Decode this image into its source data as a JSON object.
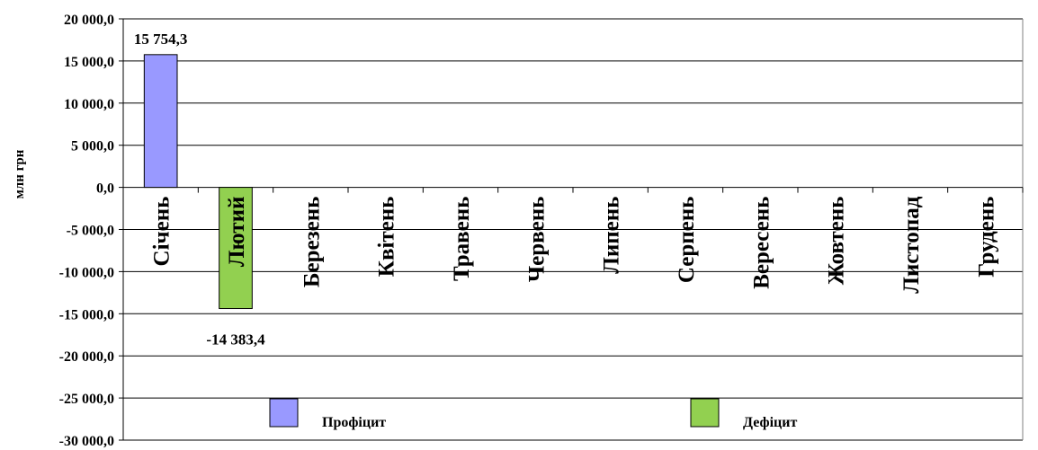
{
  "chart_data": {
    "type": "bar",
    "ylabel": "млн грн",
    "ylim": [
      -30000,
      20000
    ],
    "ytick_step": 5000,
    "ytick_labels": [
      "20 000,0",
      "15 000,0",
      "10 000,0",
      "5 000,0",
      "0,0",
      "-5 000,0",
      "-10 000,0",
      "-15 000,0",
      "-20 000,0",
      "-25 000,0",
      "-30 000,0"
    ],
    "categories": [
      "Січень",
      "Лютий",
      "Березень",
      "Квітень",
      "Травень",
      "Червень",
      "Липень",
      "Серпень",
      "Вересень",
      "Жовтень",
      "Листопад",
      "Грудень"
    ],
    "values": [
      15754.3,
      -14383.4,
      null,
      null,
      null,
      null,
      null,
      null,
      null,
      null,
      null,
      null
    ],
    "data_labels": [
      "15 754,3",
      "-14 383,4",
      "",
      "",
      "",
      "",
      "",
      "",
      "",
      "",
      "",
      ""
    ],
    "series": [
      {
        "name": "Профіцит",
        "color": "#9999FF"
      },
      {
        "name": "Дефіцит",
        "color": "#92D050"
      }
    ],
    "grid": true,
    "legend_position": "bottom"
  }
}
